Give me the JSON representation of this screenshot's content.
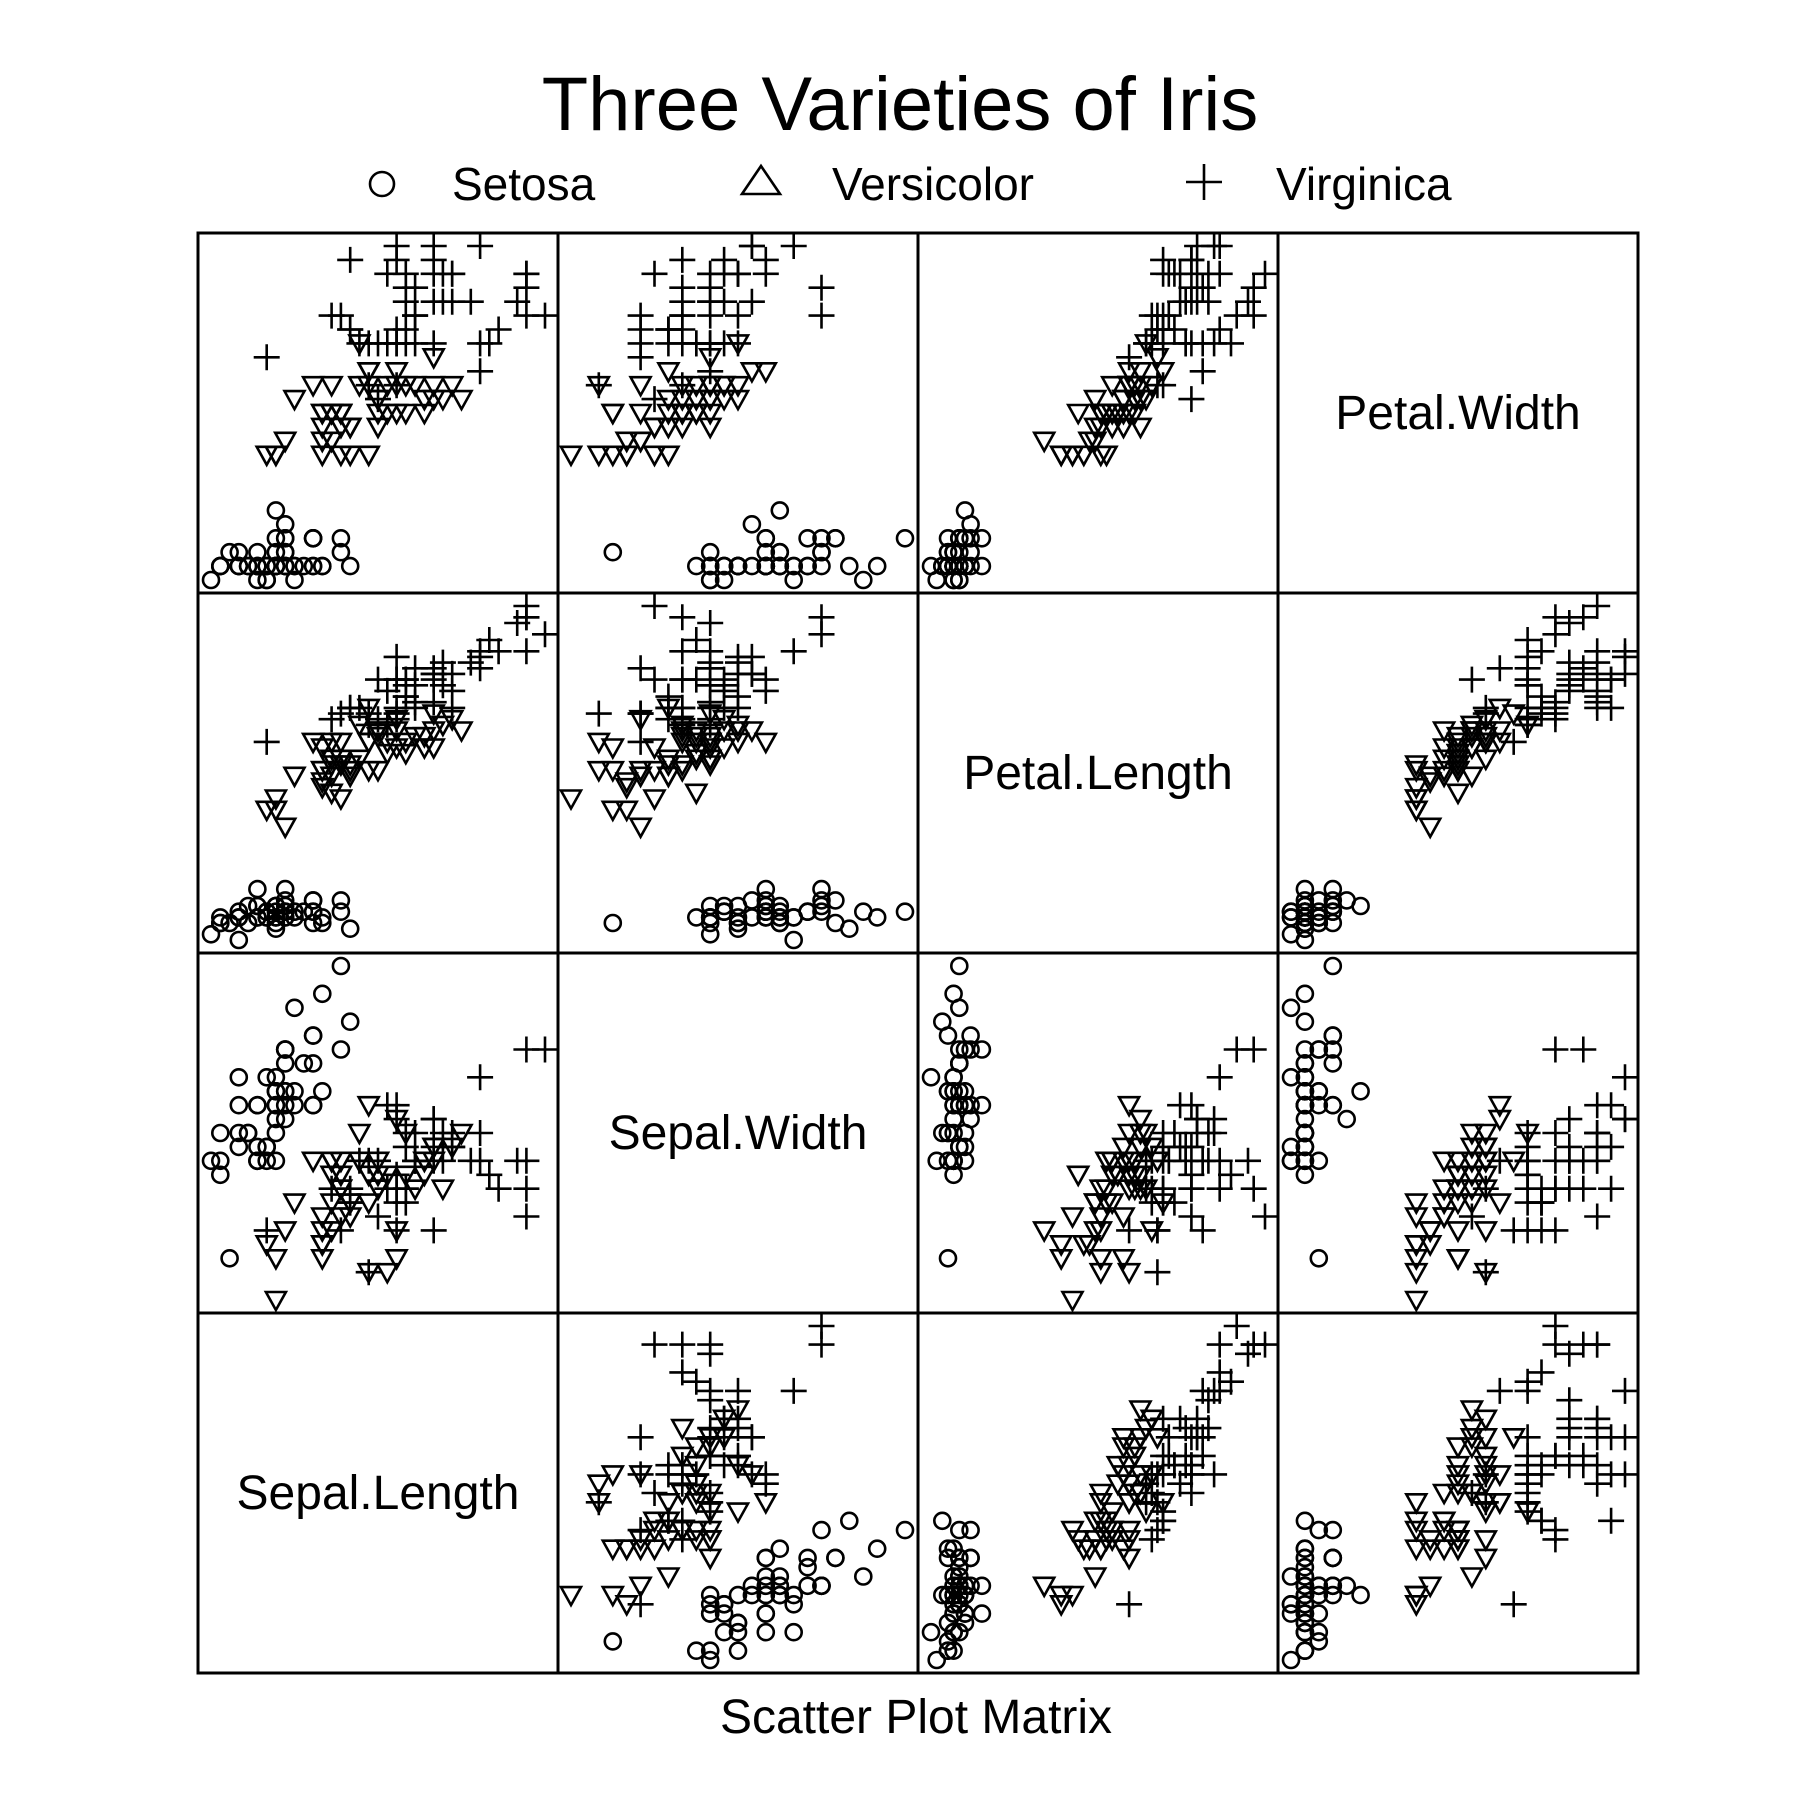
{
  "chart_data": {
    "type": "scatter",
    "subtype": "scatter-plot-matrix",
    "title": "Three Varieties of Iris",
    "xlabel": "Scatter Plot Matrix",
    "grid": false,
    "legend_position": "top",
    "variables": [
      "Sepal.Length",
      "Sepal.Width",
      "Petal.Length",
      "Petal.Width"
    ],
    "ranges": {
      "Sepal.Length": [
        4.3,
        7.9
      ],
      "Sepal.Width": [
        2.0,
        4.4
      ],
      "Petal.Length": [
        1.0,
        6.9
      ],
      "Petal.Width": [
        0.1,
        2.5
      ]
    },
    "series": [
      {
        "name": "Setosa",
        "symbol": "circle",
        "columns": [
          "Sepal.Length",
          "Sepal.Width",
          "Petal.Length",
          "Petal.Width"
        ],
        "points": [
          [
            5.1,
            3.5,
            1.4,
            0.2
          ],
          [
            4.9,
            3.0,
            1.4,
            0.2
          ],
          [
            4.7,
            3.2,
            1.3,
            0.2
          ],
          [
            4.6,
            3.1,
            1.5,
            0.2
          ],
          [
            5.0,
            3.6,
            1.4,
            0.2
          ],
          [
            5.4,
            3.9,
            1.7,
            0.4
          ],
          [
            4.6,
            3.4,
            1.4,
            0.3
          ],
          [
            5.0,
            3.4,
            1.5,
            0.2
          ],
          [
            4.4,
            2.9,
            1.4,
            0.2
          ],
          [
            4.9,
            3.1,
            1.5,
            0.1
          ],
          [
            5.4,
            3.7,
            1.5,
            0.2
          ],
          [
            4.8,
            3.4,
            1.6,
            0.2
          ],
          [
            4.8,
            3.0,
            1.4,
            0.1
          ],
          [
            4.3,
            3.0,
            1.1,
            0.1
          ],
          [
            5.8,
            4.0,
            1.2,
            0.2
          ],
          [
            5.7,
            4.4,
            1.5,
            0.4
          ],
          [
            5.4,
            3.9,
            1.3,
            0.4
          ],
          [
            5.1,
            3.5,
            1.4,
            0.3
          ],
          [
            5.7,
            3.8,
            1.7,
            0.3
          ],
          [
            5.1,
            3.8,
            1.5,
            0.3
          ],
          [
            5.4,
            3.4,
            1.7,
            0.2
          ],
          [
            5.1,
            3.7,
            1.5,
            0.4
          ],
          [
            4.6,
            3.6,
            1.0,
            0.2
          ],
          [
            5.1,
            3.3,
            1.7,
            0.5
          ],
          [
            4.8,
            3.4,
            1.9,
            0.2
          ],
          [
            5.0,
            3.0,
            1.6,
            0.2
          ],
          [
            5.0,
            3.4,
            1.6,
            0.4
          ],
          [
            5.2,
            3.5,
            1.5,
            0.2
          ],
          [
            5.2,
            3.4,
            1.4,
            0.2
          ],
          [
            4.7,
            3.2,
            1.6,
            0.2
          ],
          [
            4.8,
            3.1,
            1.6,
            0.2
          ],
          [
            5.4,
            3.4,
            1.5,
            0.4
          ],
          [
            5.2,
            4.1,
            1.5,
            0.1
          ],
          [
            5.5,
            4.2,
            1.4,
            0.2
          ],
          [
            4.9,
            3.1,
            1.5,
            0.2
          ],
          [
            5.0,
            3.2,
            1.2,
            0.2
          ],
          [
            5.5,
            3.5,
            1.3,
            0.2
          ],
          [
            4.9,
            3.6,
            1.4,
            0.1
          ],
          [
            4.4,
            3.0,
            1.3,
            0.2
          ],
          [
            5.1,
            3.4,
            1.5,
            0.2
          ],
          [
            5.0,
            3.5,
            1.3,
            0.3
          ],
          [
            4.5,
            2.3,
            1.3,
            0.3
          ],
          [
            4.4,
            3.2,
            1.3,
            0.2
          ],
          [
            5.0,
            3.5,
            1.6,
            0.6
          ],
          [
            5.1,
            3.8,
            1.9,
            0.4
          ],
          [
            4.8,
            3.0,
            1.4,
            0.3
          ],
          [
            5.1,
            3.8,
            1.6,
            0.2
          ],
          [
            4.6,
            3.2,
            1.4,
            0.2
          ],
          [
            5.3,
            3.7,
            1.5,
            0.2
          ],
          [
            5.0,
            3.3,
            1.4,
            0.2
          ]
        ]
      },
      {
        "name": "Versicolor",
        "symbol": "triangle",
        "columns": [
          "Sepal.Length",
          "Sepal.Width",
          "Petal.Length",
          "Petal.Width"
        ],
        "points": [
          [
            7.0,
            3.2,
            4.7,
            1.4
          ],
          [
            6.4,
            3.2,
            4.5,
            1.5
          ],
          [
            6.9,
            3.1,
            4.9,
            1.5
          ],
          [
            5.5,
            2.3,
            4.0,
            1.3
          ],
          [
            6.5,
            2.8,
            4.6,
            1.5
          ],
          [
            5.7,
            2.8,
            4.5,
            1.3
          ],
          [
            6.3,
            3.3,
            4.7,
            1.6
          ],
          [
            4.9,
            2.4,
            3.3,
            1.0
          ],
          [
            6.6,
            2.9,
            4.6,
            1.3
          ],
          [
            5.2,
            2.7,
            3.9,
            1.4
          ],
          [
            5.0,
            2.0,
            3.5,
            1.0
          ],
          [
            5.9,
            3.0,
            4.2,
            1.5
          ],
          [
            6.0,
            2.2,
            4.0,
            1.0
          ],
          [
            6.1,
            2.9,
            4.7,
            1.4
          ],
          [
            5.6,
            2.9,
            3.6,
            1.3
          ],
          [
            6.7,
            3.1,
            4.4,
            1.4
          ],
          [
            5.6,
            3.0,
            4.5,
            1.5
          ],
          [
            5.8,
            2.7,
            4.1,
            1.0
          ],
          [
            6.2,
            2.2,
            4.5,
            1.5
          ],
          [
            5.6,
            2.5,
            3.9,
            1.1
          ],
          [
            5.9,
            3.2,
            4.8,
            1.8
          ],
          [
            6.1,
            2.8,
            4.0,
            1.3
          ],
          [
            6.3,
            2.5,
            4.9,
            1.5
          ],
          [
            6.1,
            2.8,
            4.7,
            1.2
          ],
          [
            6.4,
            2.9,
            4.3,
            1.3
          ],
          [
            6.6,
            3.0,
            4.4,
            1.4
          ],
          [
            6.8,
            2.8,
            4.8,
            1.4
          ],
          [
            6.7,
            3.0,
            5.0,
            1.7
          ],
          [
            6.0,
            2.9,
            4.5,
            1.5
          ],
          [
            5.7,
            2.6,
            3.5,
            1.0
          ],
          [
            5.5,
            2.4,
            3.8,
            1.1
          ],
          [
            5.5,
            2.4,
            3.7,
            1.0
          ],
          [
            5.8,
            2.7,
            3.9,
            1.2
          ],
          [
            6.0,
            2.7,
            5.1,
            1.6
          ],
          [
            5.4,
            3.0,
            4.5,
            1.5
          ],
          [
            6.0,
            3.4,
            4.5,
            1.6
          ],
          [
            6.7,
            3.1,
            4.7,
            1.5
          ],
          [
            6.3,
            2.3,
            4.4,
            1.3
          ],
          [
            5.6,
            3.0,
            4.1,
            1.3
          ],
          [
            5.5,
            2.5,
            4.0,
            1.3
          ],
          [
            5.5,
            2.6,
            4.4,
            1.2
          ],
          [
            6.1,
            3.0,
            4.6,
            1.4
          ],
          [
            5.8,
            2.6,
            4.0,
            1.2
          ],
          [
            5.0,
            2.3,
            3.3,
            1.0
          ],
          [
            5.6,
            2.7,
            4.2,
            1.3
          ],
          [
            5.7,
            3.0,
            4.2,
            1.2
          ],
          [
            5.7,
            2.9,
            4.2,
            1.3
          ],
          [
            6.2,
            2.9,
            4.3,
            1.3
          ],
          [
            5.1,
            2.5,
            3.0,
            1.1
          ],
          [
            5.7,
            2.8,
            4.1,
            1.3
          ]
        ]
      },
      {
        "name": "Virginica",
        "symbol": "plus",
        "columns": [
          "Sepal.Length",
          "Sepal.Width",
          "Petal.Length",
          "Petal.Width"
        ],
        "points": [
          [
            6.3,
            3.3,
            6.0,
            2.5
          ],
          [
            5.8,
            2.7,
            5.1,
            1.9
          ],
          [
            7.1,
            3.0,
            5.9,
            2.1
          ],
          [
            6.3,
            2.9,
            5.6,
            1.8
          ],
          [
            6.5,
            3.0,
            5.8,
            2.2
          ],
          [
            7.6,
            3.0,
            6.6,
            2.1
          ],
          [
            4.9,
            2.5,
            4.5,
            1.7
          ],
          [
            7.3,
            2.9,
            6.3,
            1.8
          ],
          [
            6.7,
            2.5,
            5.8,
            1.8
          ],
          [
            7.2,
            3.6,
            6.1,
            2.5
          ],
          [
            6.5,
            3.2,
            5.1,
            2.0
          ],
          [
            6.4,
            2.7,
            5.3,
            1.9
          ],
          [
            6.8,
            3.0,
            5.5,
            2.1
          ],
          [
            5.7,
            2.5,
            5.0,
            2.0
          ],
          [
            5.8,
            2.8,
            5.1,
            2.4
          ],
          [
            6.4,
            3.2,
            5.3,
            2.3
          ],
          [
            6.5,
            3.0,
            5.5,
            1.8
          ],
          [
            7.7,
            3.8,
            6.7,
            2.2
          ],
          [
            7.7,
            2.6,
            6.9,
            2.3
          ],
          [
            6.0,
            2.2,
            5.0,
            1.5
          ],
          [
            6.9,
            3.2,
            5.7,
            2.3
          ],
          [
            5.6,
            2.8,
            4.9,
            2.0
          ],
          [
            7.7,
            2.8,
            6.7,
            2.0
          ],
          [
            6.3,
            2.7,
            4.9,
            1.8
          ],
          [
            6.7,
            3.3,
            5.7,
            2.1
          ],
          [
            7.2,
            3.2,
            6.0,
            1.8
          ],
          [
            6.2,
            2.8,
            4.8,
            1.8
          ],
          [
            6.1,
            3.0,
            4.9,
            1.8
          ],
          [
            6.4,
            2.8,
            5.6,
            2.1
          ],
          [
            7.2,
            3.0,
            5.8,
            1.6
          ],
          [
            7.4,
            2.8,
            6.1,
            1.9
          ],
          [
            7.9,
            3.8,
            6.4,
            2.0
          ],
          [
            6.4,
            2.8,
            5.6,
            2.2
          ],
          [
            6.3,
            2.8,
            5.1,
            1.5
          ],
          [
            6.1,
            2.6,
            5.6,
            1.4
          ],
          [
            7.7,
            3.0,
            6.1,
            2.3
          ],
          [
            6.3,
            3.4,
            5.6,
            2.4
          ],
          [
            6.4,
            3.1,
            5.5,
            1.8
          ],
          [
            6.0,
            3.0,
            4.8,
            1.8
          ],
          [
            6.9,
            3.1,
            5.4,
            2.1
          ],
          [
            6.7,
            3.1,
            5.6,
            2.4
          ],
          [
            6.9,
            3.1,
            5.1,
            2.3
          ],
          [
            5.8,
            2.7,
            5.1,
            1.9
          ],
          [
            6.8,
            3.2,
            5.9,
            2.3
          ],
          [
            6.7,
            3.3,
            5.7,
            2.5
          ],
          [
            6.7,
            3.0,
            5.2,
            2.3
          ],
          [
            6.3,
            2.5,
            5.0,
            1.9
          ],
          [
            6.5,
            3.0,
            5.2,
            2.0
          ],
          [
            6.2,
            3.4,
            5.4,
            2.3
          ],
          [
            5.9,
            3.0,
            5.1,
            1.8
          ]
        ]
      }
    ]
  }
}
